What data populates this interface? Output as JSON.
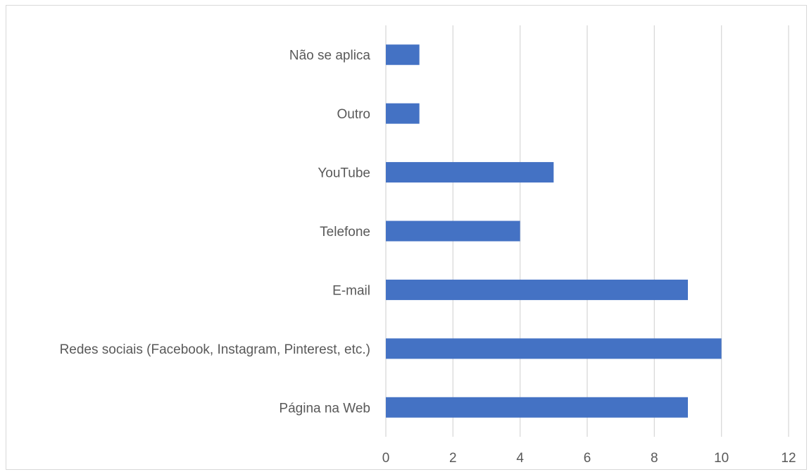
{
  "chart_data": {
    "type": "bar",
    "orientation": "horizontal",
    "categories": [
      "Página na Web",
      "Redes sociais (Facebook, Instagram, Pinterest, etc.)",
      "E-mail",
      "Telefone",
      "YouTube",
      "Outro",
      "Não se aplica"
    ],
    "values": [
      9,
      10,
      9,
      4,
      5,
      1,
      1
    ],
    "title": "",
    "xlabel": "",
    "ylabel": "",
    "xlim": [
      0,
      12
    ],
    "xticks": [
      0,
      2,
      4,
      6,
      8,
      10,
      12
    ],
    "xtick_labels": [
      "0",
      "2",
      "4",
      "6",
      "8",
      "10",
      "12"
    ],
    "grid": "vertical",
    "legend": "none",
    "bar_color": "#4472C4",
    "grid_color": "#D9D9D9",
    "label_color": "#595959"
  }
}
